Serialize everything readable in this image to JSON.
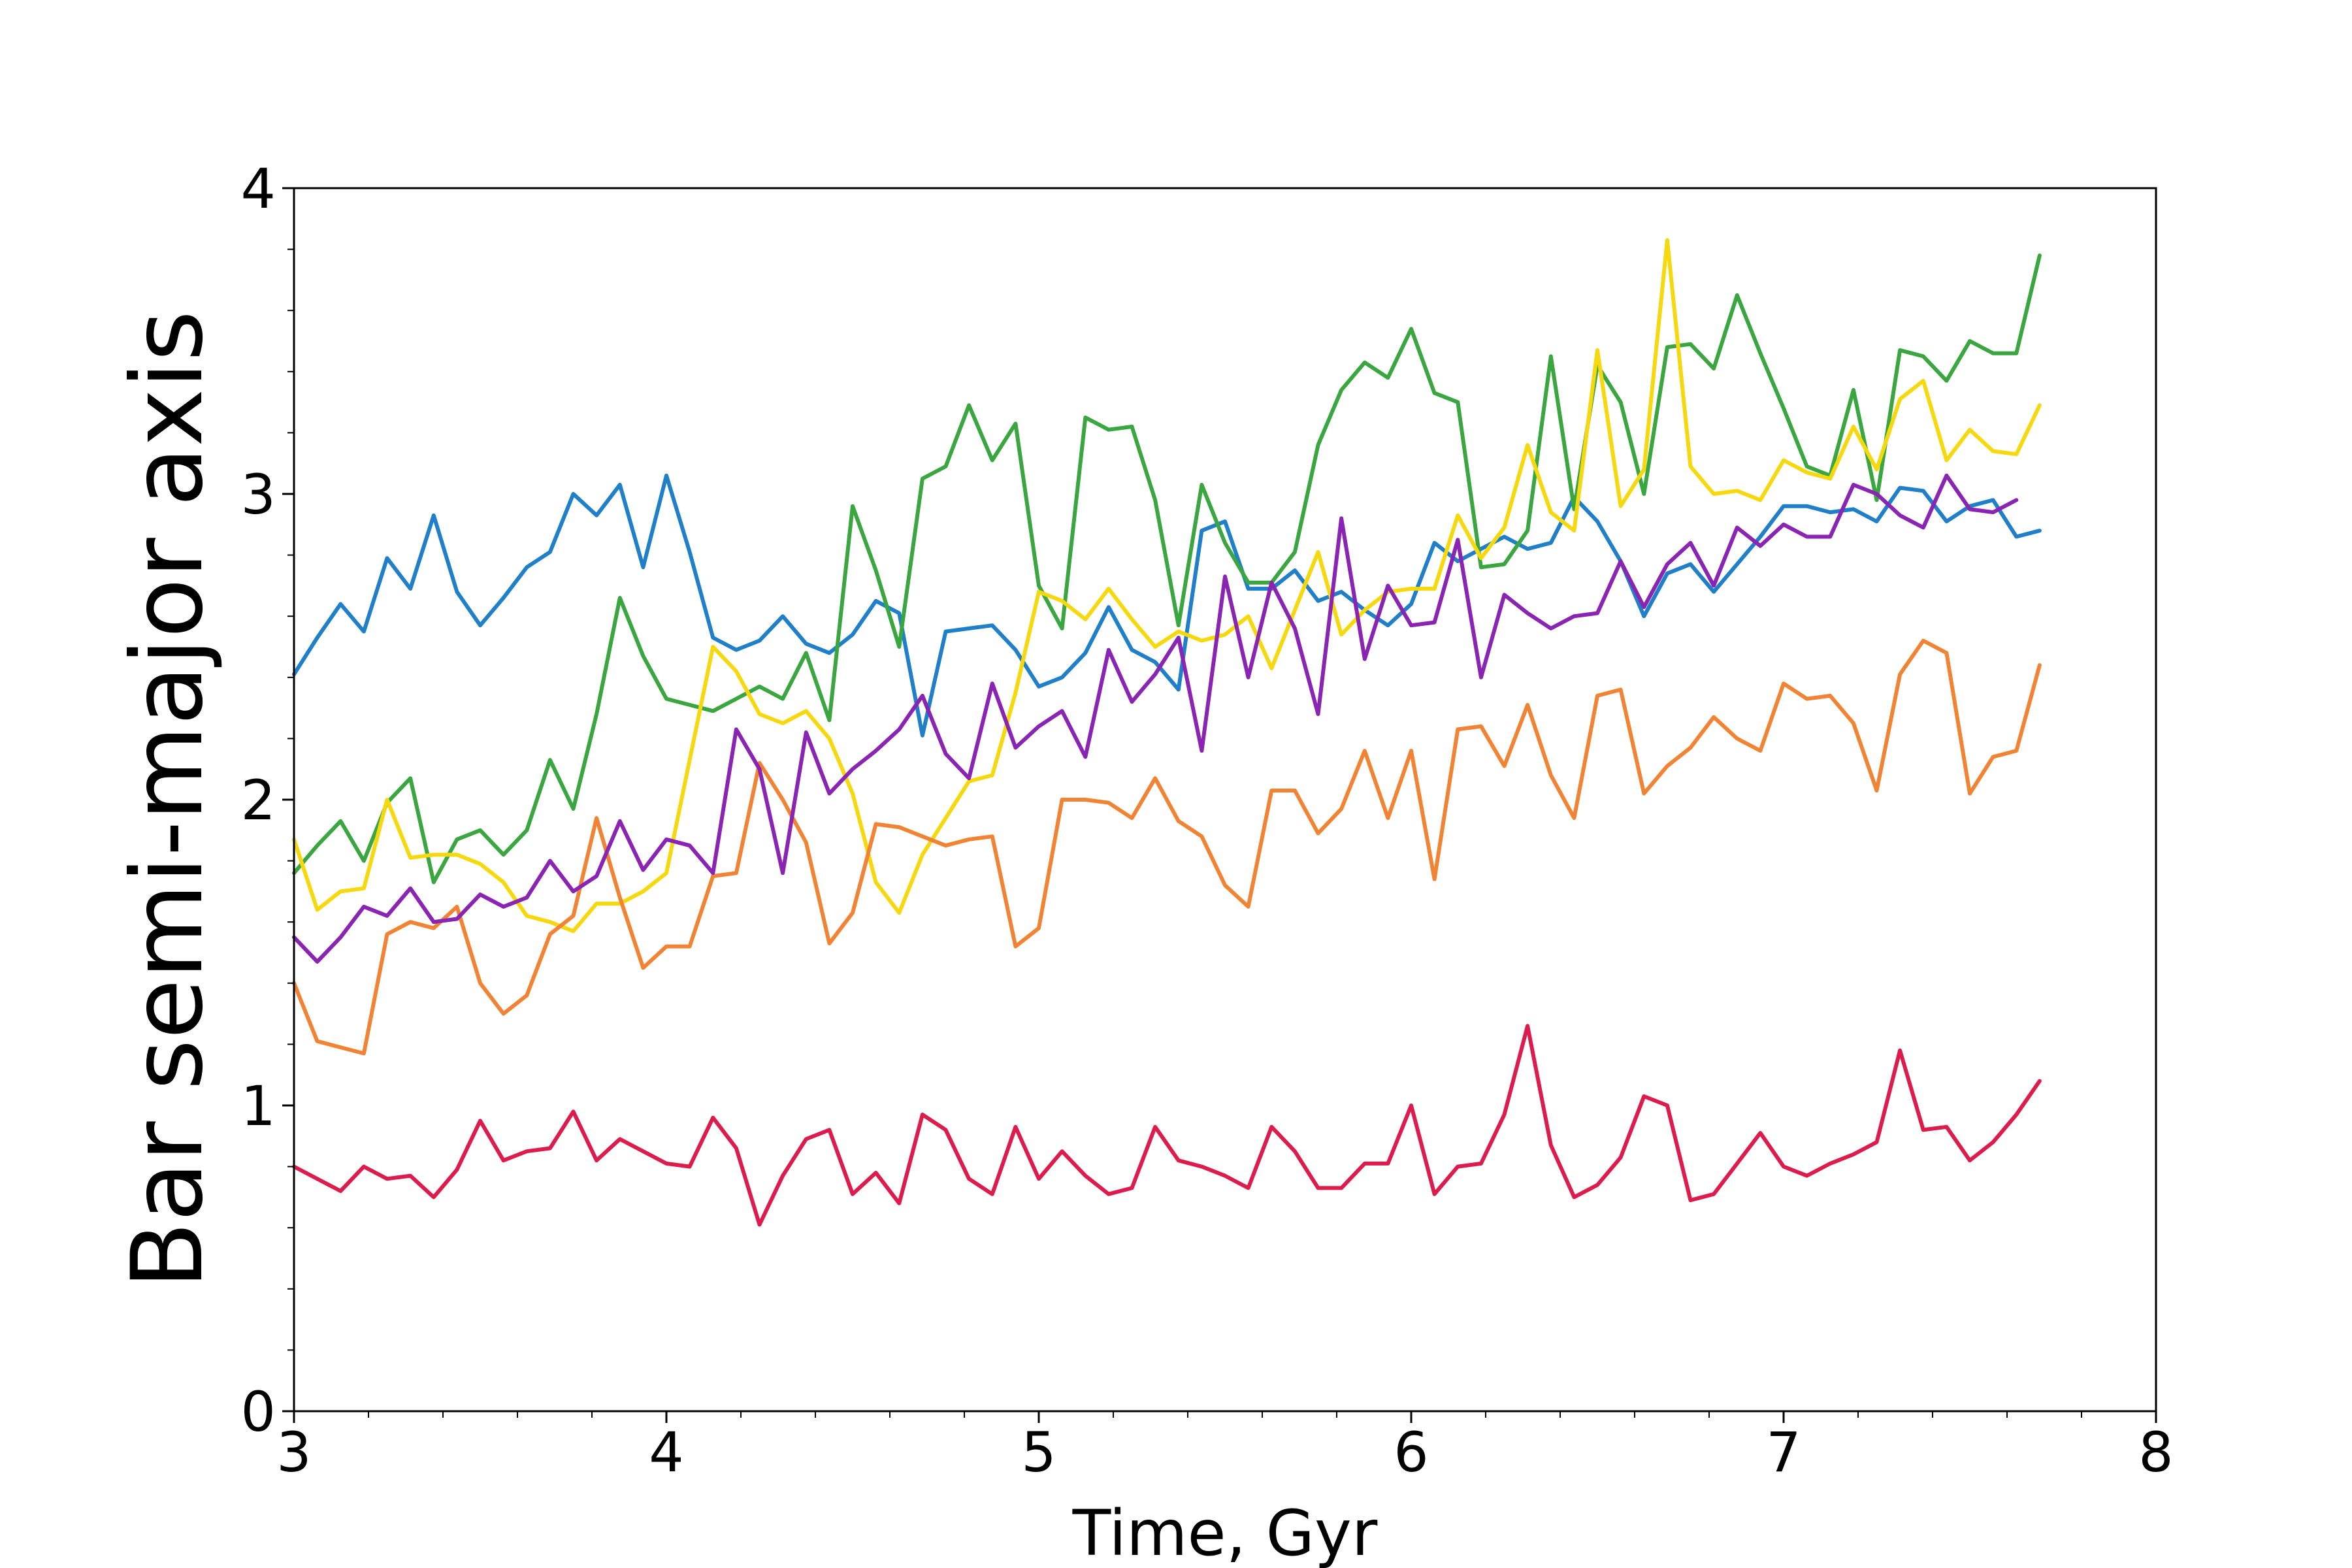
{
  "chart_data": {
    "type": "line",
    "title": "",
    "xlabel": "Time, Gyr",
    "ylabel": "Bar semi-major axis",
    "xlim": [
      3,
      8
    ],
    "ylim": [
      0,
      4
    ],
    "x_ticks": [
      "3",
      "4",
      "5",
      "6",
      "7",
      "8"
    ],
    "y_ticks": [
      "0",
      "1",
      "2",
      "3",
      "4"
    ],
    "grid": false,
    "legend": "none",
    "x_start": 3.0,
    "x_step": 0.0625,
    "series": [
      {
        "color": "#1f7fc8",
        "values": [
          2.41,
          2.53,
          2.64,
          2.55,
          2.79,
          2.69,
          2.93,
          2.68,
          2.57,
          2.66,
          2.76,
          2.81,
          3.0,
          2.93,
          3.03,
          2.76,
          3.06,
          2.81,
          2.53,
          2.49,
          2.52,
          2.6,
          2.51,
          2.48,
          2.54,
          2.65,
          2.61,
          2.21,
          2.55,
          2.56,
          2.57,
          2.49,
          2.37,
          2.4,
          2.48,
          2.63,
          2.49,
          2.45,
          2.36,
          2.88,
          2.91,
          2.69,
          2.69,
          2.75,
          2.65,
          2.68,
          2.62,
          2.57,
          2.64,
          2.84,
          2.78,
          2.82,
          2.86,
          2.82,
          2.84,
          2.99,
          2.91,
          2.78,
          2.6,
          2.74,
          2.77,
          2.68,
          2.77,
          2.86,
          2.96,
          2.96,
          2.94,
          2.95,
          2.91,
          3.02,
          3.01,
          2.91,
          2.96,
          2.98,
          2.86,
          2.88
        ]
      },
      {
        "color": "#3aa640",
        "values": [
          1.76,
          1.85,
          1.93,
          1.8,
          1.99,
          2.07,
          1.73,
          1.87,
          1.9,
          1.82,
          1.9,
          2.13,
          1.97,
          2.28,
          2.66,
          2.47,
          2.33,
          2.31,
          2.29,
          2.33,
          2.37,
          2.33,
          2.48,
          2.26,
          2.96,
          2.75,
          2.5,
          3.05,
          3.09,
          3.29,
          3.11,
          3.23,
          2.7,
          2.56,
          3.25,
          3.21,
          3.22,
          2.98,
          2.57,
          3.03,
          2.84,
          2.71,
          2.71,
          2.81,
          3.16,
          3.34,
          3.43,
          3.38,
          3.54,
          3.33,
          3.3,
          2.76,
          2.77,
          2.88,
          3.45,
          2.95,
          3.42,
          3.3,
          3.0,
          3.48,
          3.49,
          3.41,
          3.65,
          3.46,
          3.28,
          3.09,
          3.06,
          3.34,
          2.98,
          3.47,
          3.45,
          3.37,
          3.5,
          3.46,
          3.46,
          3.78
        ]
      },
      {
        "color": "#f5d80e",
        "values": [
          1.87,
          1.64,
          1.7,
          1.71,
          2.0,
          1.81,
          1.82,
          1.82,
          1.79,
          1.73,
          1.62,
          1.6,
          1.57,
          1.66,
          1.66,
          1.7,
          1.76,
          2.13,
          2.5,
          2.42,
          2.28,
          2.25,
          2.29,
          2.2,
          2.02,
          1.73,
          1.63,
          1.82,
          1.94,
          2.06,
          2.08,
          2.35,
          2.68,
          2.65,
          2.59,
          2.69,
          2.59,
          2.5,
          2.55,
          2.52,
          2.54,
          2.6,
          2.43,
          2.62,
          2.81,
          2.54,
          2.62,
          2.68,
          2.69,
          2.69,
          2.93,
          2.79,
          2.89,
          3.16,
          2.94,
          2.88,
          3.47,
          2.96,
          3.08,
          3.83,
          3.09,
          3.0,
          3.01,
          2.98,
          3.11,
          3.07,
          3.05,
          3.22,
          3.08,
          3.31,
          3.37,
          3.11,
          3.21,
          3.14,
          3.13,
          3.29
        ]
      },
      {
        "color": "#f08434",
        "values": [
          1.4,
          1.21,
          1.19,
          1.17,
          1.56,
          1.6,
          1.58,
          1.65,
          1.4,
          1.3,
          1.36,
          1.56,
          1.62,
          1.94,
          1.68,
          1.45,
          1.52,
          1.52,
          1.75,
          1.76,
          2.12,
          2.0,
          1.86,
          1.53,
          1.63,
          1.92,
          1.91,
          1.88,
          1.85,
          1.87,
          1.88,
          1.52,
          1.58,
          2.0,
          2.0,
          1.99,
          1.94,
          2.07,
          1.93,
          1.88,
          1.72,
          1.65,
          2.03,
          2.03,
          1.89,
          1.97,
          2.16,
          1.94,
          2.16,
          1.74,
          2.23,
          2.24,
          2.11,
          2.31,
          2.08,
          1.94,
          2.34,
          2.36,
          2.02,
          2.11,
          2.17,
          2.27,
          2.2,
          2.16,
          2.38,
          2.33,
          2.34,
          2.25,
          2.03,
          2.41,
          2.52,
          2.48,
          2.02,
          2.14,
          2.16,
          2.44
        ]
      },
      {
        "color": "#8a24b2",
        "values": [
          1.55,
          1.47,
          1.55,
          1.65,
          1.62,
          1.71,
          1.6,
          1.61,
          1.69,
          1.65,
          1.68,
          1.8,
          1.7,
          1.75,
          1.93,
          1.77,
          1.87,
          1.85,
          1.76,
          2.23,
          2.1,
          1.76,
          2.22,
          2.02,
          2.1,
          2.16,
          2.23,
          2.34,
          2.15,
          2.07,
          2.38,
          2.17,
          2.24,
          2.29,
          2.14,
          2.49,
          2.32,
          2.41,
          2.53,
          2.16,
          2.73,
          2.4,
          2.71,
          2.56,
          2.28,
          2.92,
          2.46,
          2.7,
          2.57,
          2.58,
          2.85,
          2.4,
          2.67,
          2.61,
          2.56,
          2.6,
          2.61,
          2.78,
          2.63,
          2.77,
          2.84,
          2.7,
          2.89,
          2.83,
          2.9,
          2.86,
          2.86,
          3.03,
          3.0,
          2.93,
          2.89,
          3.06,
          2.95,
          2.94,
          2.98
        ]
      },
      {
        "color": "#dc1c4c",
        "values": [
          0.8,
          0.76,
          0.72,
          0.8,
          0.76,
          0.77,
          0.7,
          0.79,
          0.95,
          0.82,
          0.85,
          0.86,
          0.98,
          0.82,
          0.89,
          0.85,
          0.81,
          0.8,
          0.96,
          0.86,
          0.61,
          0.77,
          0.89,
          0.92,
          0.71,
          0.78,
          0.68,
          0.97,
          0.92,
          0.76,
          0.71,
          0.93,
          0.76,
          0.85,
          0.77,
          0.71,
          0.73,
          0.93,
          0.82,
          0.8,
          0.77,
          0.73,
          0.93,
          0.85,
          0.73,
          0.73,
          0.81,
          0.81,
          1.0,
          0.71,
          0.8,
          0.81,
          0.97,
          1.26,
          0.87,
          0.7,
          0.74,
          0.83,
          1.03,
          1.0,
          0.69,
          0.71,
          0.81,
          0.91,
          0.8,
          0.77,
          0.81,
          0.84,
          0.88,
          1.18,
          0.92,
          0.93,
          0.82,
          0.88,
          0.97,
          1.08
        ]
      }
    ]
  }
}
